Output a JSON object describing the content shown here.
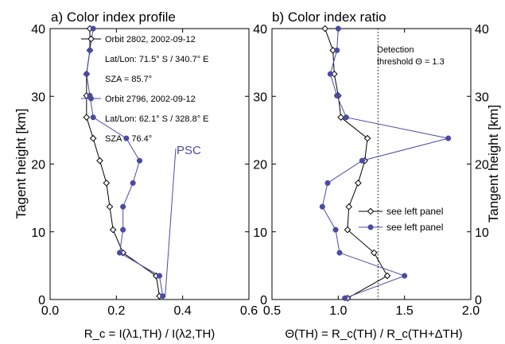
{
  "colors": {
    "black_series": "#000000",
    "blue_series": "#4b4aa3"
  },
  "chart_data": [
    {
      "type": "line",
      "title": "a) Color index profile",
      "xlabel": "R_c = I(λ1,TH) / I(λ2,TH)",
      "ylabel": "Tagent height [km]",
      "xlim": [
        0.0,
        0.6
      ],
      "ylim": [
        0,
        40
      ],
      "xticks": [
        "0.0",
        "0.2",
        "0.4",
        "0.6"
      ],
      "yticks": [
        "0",
        "10",
        "20",
        "30",
        "40"
      ],
      "grid": false,
      "series": [
        {
          "name": "Orbit 2802, 2002-09-12",
          "details": [
            "Lat/Lon: 71.5° S / 340.7° E",
            "SZA = 85.7°"
          ],
          "marker": "open-diamond",
          "x": [
            0.33,
            0.32,
            0.22,
            0.19,
            0.18,
            0.17,
            0.15,
            0.13,
            0.11,
            0.11,
            0.11,
            0.12,
            0.12
          ],
          "y": [
            0.5,
            3.5,
            6.9,
            10.3,
            13.7,
            17.2,
            20.5,
            23.8,
            26.9,
            30.1,
            33.3,
            36.8,
            40
          ]
        },
        {
          "name": "Orbit 2796, 2002-09-12",
          "details": [
            "Lat/Lon: 62.1° S / 328.8° E",
            "SZA = 76.4°"
          ],
          "marker": "filled-circle",
          "x": [
            0.34,
            0.33,
            0.21,
            0.22,
            0.22,
            0.25,
            0.27,
            0.23,
            0.13,
            0.12,
            0.11,
            0.12,
            0.13
          ],
          "y": [
            0.5,
            3.5,
            6.9,
            10.3,
            13.7,
            17.2,
            20.5,
            23.8,
            26.9,
            30.1,
            33.3,
            36.8,
            40
          ]
        }
      ],
      "annotations": [
        {
          "text": "PSC"
        }
      ]
    },
    {
      "type": "line",
      "title": "b) Color index ratio",
      "xlabel": "Θ(TH) = R_c(TH) / R_c(TH+ΔTH)",
      "ylabel": "Tangent height [km]",
      "xlim": [
        0.5,
        2.0
      ],
      "ylim": [
        0,
        40
      ],
      "xticks": [
        "0.5",
        "1.0",
        "1.5",
        "2.0"
      ],
      "yticks": [
        "0",
        "10",
        "20",
        "30",
        "40"
      ],
      "grid": false,
      "threshold": {
        "value": 1.3,
        "label_lines": [
          "Detection",
          "threshold Θ = 1.3"
        ]
      },
      "series": [
        {
          "name": "see left panel",
          "marker": "open-diamond",
          "x": [
            1.07,
            1.37,
            1.27,
            1.07,
            1.08,
            1.15,
            1.2,
            1.22,
            1.02,
            1.0,
            0.97,
            0.96,
            0.9
          ],
          "y": [
            0.2,
            3.5,
            6.9,
            10.3,
            13.7,
            17.2,
            20.5,
            23.8,
            26.9,
            30.1,
            33.3,
            36.8,
            40
          ]
        },
        {
          "name": "see left panel",
          "marker": "filled-circle",
          "x": [
            1.05,
            1.5,
            1.01,
            0.98,
            0.88,
            0.92,
            1.18,
            1.83,
            1.06,
            0.99,
            0.94,
            0.99,
            1.0
          ],
          "y": [
            0.2,
            3.5,
            6.9,
            10.3,
            13.7,
            17.2,
            20.5,
            23.8,
            26.9,
            30.1,
            33.3,
            36.8,
            40
          ]
        }
      ]
    }
  ]
}
